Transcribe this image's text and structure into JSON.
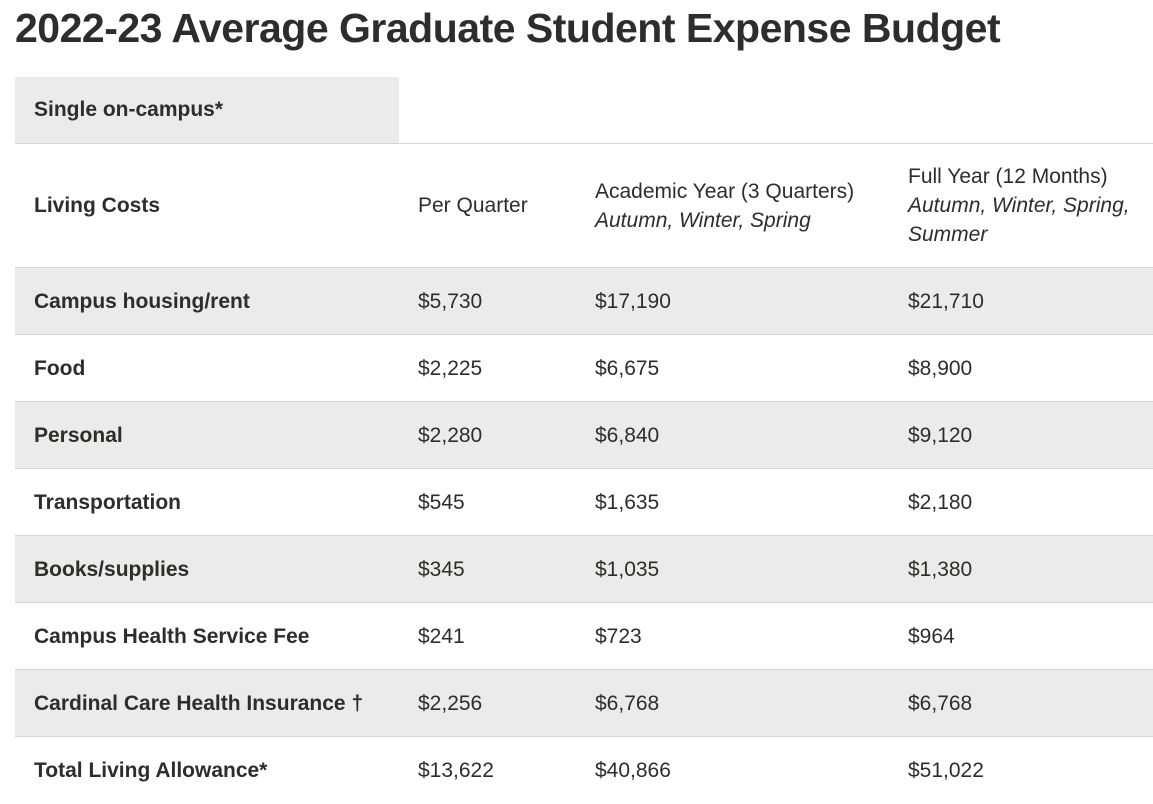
{
  "page": {
    "title": "2022-23 Average Graduate Student Expense Budget"
  },
  "tabs": [
    {
      "label": "Single on-campus*",
      "active": true
    }
  ],
  "table": {
    "headers": {
      "col1": "Living Costs",
      "col2": "Per Quarter",
      "col3_main": "Academic Year (3 Quarters)",
      "col3_sub": "Autumn, Winter, Spring",
      "col4_main": "Full Year (12 Months)",
      "col4_sub_line1": "Autumn, Winter, Spring,",
      "col4_sub_line2": "Summer"
    },
    "rows": [
      {
        "label": "Campus housing/rent",
        "per_quarter": "$5,730",
        "academic_year": "$17,190",
        "full_year": "$21,710"
      },
      {
        "label": "Food",
        "per_quarter": "$2,225",
        "academic_year": "$6,675",
        "full_year": "$8,900"
      },
      {
        "label": "Personal",
        "per_quarter": "$2,280",
        "academic_year": "$6,840",
        "full_year": "$9,120"
      },
      {
        "label": "Transportation",
        "per_quarter": "$545",
        "academic_year": "$1,635",
        "full_year": "$2,180"
      },
      {
        "label": "Books/supplies",
        "per_quarter": "$345",
        "academic_year": "$1,035",
        "full_year": "$1,380"
      },
      {
        "label": "Campus Health Service Fee",
        "per_quarter": "$241",
        "academic_year": "$723",
        "full_year": "$964"
      },
      {
        "label": "Cardinal Care Health Insurance †",
        "per_quarter": "$2,256",
        "academic_year": "$6,768",
        "full_year": "$6,768"
      },
      {
        "label": "Total Living Allowance*",
        "per_quarter": "$13,622",
        "academic_year": "$40,866",
        "full_year": "$51,022"
      }
    ]
  },
  "colors": {
    "text": "#2e2d29",
    "row_shade": "#ebebea",
    "divider": "#d5d5d4"
  }
}
